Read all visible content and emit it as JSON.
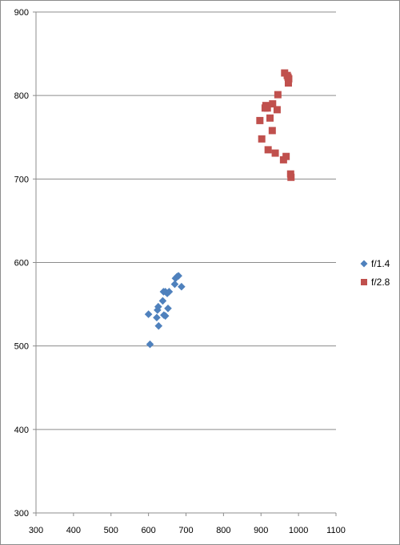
{
  "chart_data": {
    "type": "scatter",
    "title": "",
    "xlabel": "",
    "ylabel": "",
    "xlim": [
      300,
      1100
    ],
    "ylim": [
      300,
      900
    ],
    "xticks": [
      300,
      400,
      500,
      600,
      700,
      800,
      900,
      1000,
      1100
    ],
    "yticks": [
      300,
      400,
      500,
      600,
      700,
      800,
      900
    ],
    "grid": "horizontal major gridlines",
    "legend_position": "right",
    "series": [
      {
        "name": "f/1.4",
        "color": "#4F81BD",
        "marker": "diamond",
        "points": [
          [
            604,
            502
          ],
          [
            600,
            538
          ],
          [
            622,
            534
          ],
          [
            627,
            524
          ],
          [
            624,
            543
          ],
          [
            626,
            547
          ],
          [
            638,
            554
          ],
          [
            641,
            537
          ],
          [
            645,
            536
          ],
          [
            640,
            565
          ],
          [
            645,
            565
          ],
          [
            650,
            563
          ],
          [
            652,
            545
          ],
          [
            655,
            565
          ],
          [
            670,
            574
          ],
          [
            672,
            581
          ],
          [
            676,
            583
          ],
          [
            680,
            584
          ],
          [
            688,
            571
          ]
        ]
      },
      {
        "name": "f/2.8",
        "color": "#C0504D",
        "marker": "square",
        "points": [
          [
            963,
            827
          ],
          [
            970,
            824
          ],
          [
            972,
            822
          ],
          [
            974,
            820
          ],
          [
            973,
            815
          ],
          [
            945,
            801
          ],
          [
            931,
            790
          ],
          [
            913,
            788
          ],
          [
            917,
            785
          ],
          [
            911,
            785
          ],
          [
            943,
            783
          ],
          [
            924,
            773
          ],
          [
            897,
            770
          ],
          [
            930,
            758
          ],
          [
            902,
            748
          ],
          [
            919,
            735
          ],
          [
            938,
            731
          ],
          [
            967,
            727
          ],
          [
            960,
            723
          ],
          [
            979,
            706
          ],
          [
            980,
            702
          ]
        ]
      }
    ]
  }
}
